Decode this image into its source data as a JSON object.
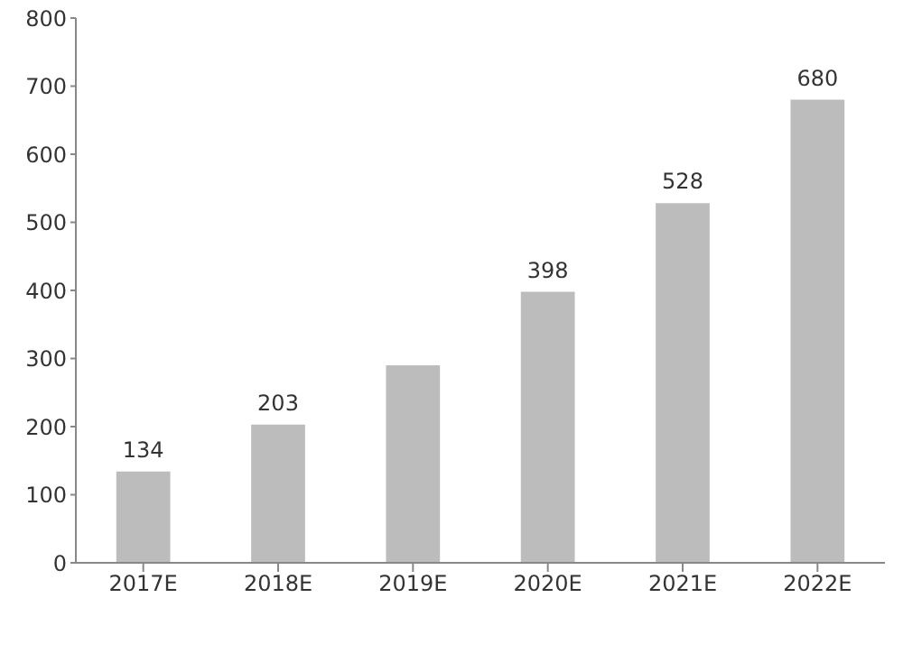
{
  "chart_data": {
    "type": "bar",
    "categories": [
      "2017E",
      "2018E",
      "2019E",
      "2020E",
      "2021E",
      "2022E"
    ],
    "values": [
      134,
      203,
      290,
      398,
      528,
      680
    ],
    "value_labels": [
      "134",
      "203",
      null,
      "398",
      "528",
      "680"
    ],
    "color": "#bcbcbc",
    "ylim": [
      0,
      800
    ],
    "yticks": [
      0,
      100,
      200,
      300,
      400,
      500,
      600,
      700,
      800
    ],
    "grid": false
  }
}
